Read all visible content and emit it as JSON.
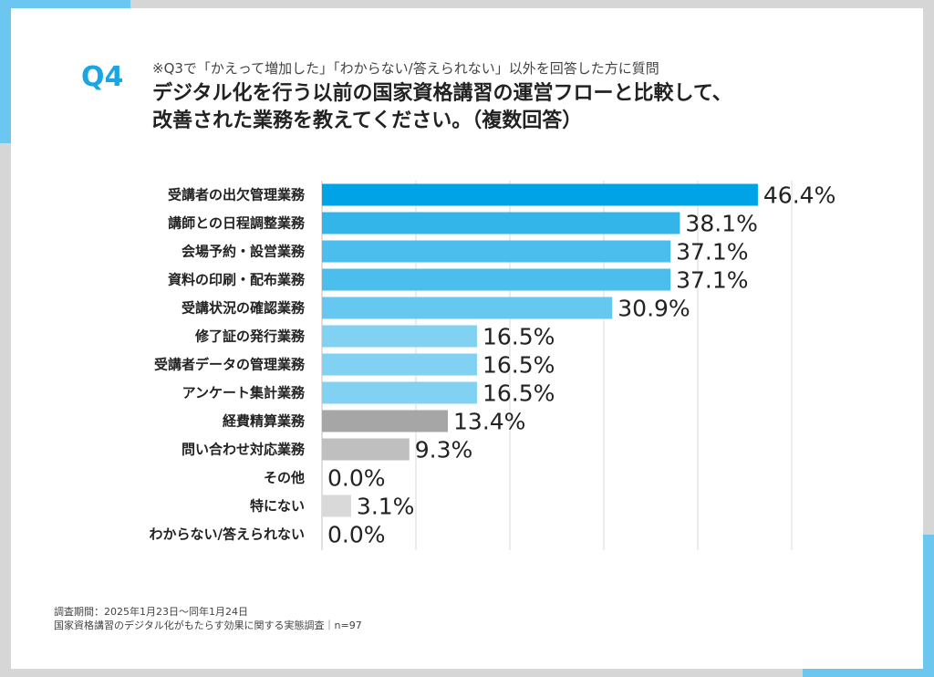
{
  "header": {
    "q_label": "Q4",
    "note": "※Q3で「かえって増加した」「わからない/答えられない」以外を回答した方に質問",
    "title_line1": "デジタル化を行う以前の国家資格講習の運営フローと比較して、",
    "title_line2": "改善された業務を教えてください。（複数回答）"
  },
  "footer": {
    "period": "調査期間：2025年1月23日〜同年1月24日",
    "survey": "国家資格講習のデジタル化がもたらす効果に関する実態調査｜n=97"
  },
  "chart_data": {
    "type": "bar",
    "orientation": "horizontal",
    "unit": "%",
    "xlim": [
      0,
      50
    ],
    "grid": true,
    "categories": [
      "受講者の出欠管理業務",
      "講師との日程調整業務",
      "会場予約・設営業務",
      "資料の印刷・配布業務",
      "受講状況の確認業務",
      "修了証の発行業務",
      "受講者データの管理業務",
      "アンケート集計業務",
      "経費精算業務",
      "問い合わせ対応業務",
      "その他",
      "特にない",
      "わからない/答えられない"
    ],
    "values": [
      46.4,
      38.1,
      37.1,
      37.1,
      30.9,
      16.5,
      16.5,
      16.5,
      13.4,
      9.3,
      0.0,
      3.1,
      0.0
    ],
    "value_labels": [
      "46.4%",
      "38.1%",
      "37.1%",
      "37.1%",
      "30.9%",
      "16.5%",
      "16.5%",
      "16.5%",
      "13.4%",
      "9.3%",
      "0.0%",
      "3.1%",
      "0.0%"
    ],
    "colors": [
      "#00a3e6",
      "#33b5ea",
      "#4cbeed",
      "#4cbeed",
      "#66c7f0",
      "#80d1f2",
      "#80d1f2",
      "#80d1f2",
      "#a6a6a6",
      "#bfbfbf",
      "#cccccc",
      "#d9d9d9",
      "#d9d9d9"
    ]
  }
}
